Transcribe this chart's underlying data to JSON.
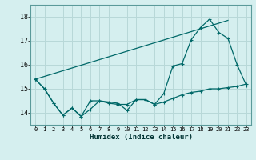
{
  "title": "",
  "xlabel": "Humidex (Indice chaleur)",
  "background_color": "#d5efef",
  "grid_color": "#b8d8d8",
  "line_color": "#006868",
  "x_ticks": [
    0,
    1,
    2,
    3,
    4,
    5,
    6,
    7,
    8,
    9,
    10,
    11,
    12,
    13,
    14,
    15,
    16,
    17,
    18,
    19,
    20,
    21,
    22,
    23
  ],
  "y_ticks": [
    14,
    15,
    16,
    17,
    18
  ],
  "ylim": [
    13.5,
    18.5
  ],
  "xlim": [
    -0.5,
    23.5
  ],
  "series1_x": [
    0,
    1,
    2,
    3,
    4,
    5,
    6,
    7,
    8,
    9,
    10,
    11,
    12,
    13,
    14,
    15,
    16,
    17,
    18,
    19,
    20,
    21,
    22,
    23
  ],
  "series1_y": [
    15.4,
    15.0,
    14.4,
    13.9,
    14.2,
    13.85,
    14.15,
    14.5,
    14.4,
    14.35,
    14.35,
    14.55,
    14.55,
    14.35,
    14.45,
    14.6,
    14.75,
    14.85,
    14.9,
    15.0,
    15.0,
    15.05,
    15.1,
    15.2
  ],
  "series2_x": [
    0,
    1,
    2,
    3,
    4,
    5,
    6,
    7,
    8,
    9,
    10,
    11,
    12,
    13,
    14,
    15,
    16,
    17,
    18,
    19,
    20,
    21,
    22,
    23
  ],
  "series2_y": [
    15.4,
    15.0,
    14.4,
    13.9,
    14.2,
    13.85,
    14.5,
    14.5,
    14.45,
    14.4,
    14.1,
    14.55,
    14.55,
    14.35,
    14.8,
    15.95,
    16.05,
    17.05,
    17.55,
    17.9,
    17.35,
    17.1,
    16.0,
    15.15
  ],
  "series3_x": [
    0,
    21
  ],
  "series3_y": [
    15.4,
    17.85
  ]
}
